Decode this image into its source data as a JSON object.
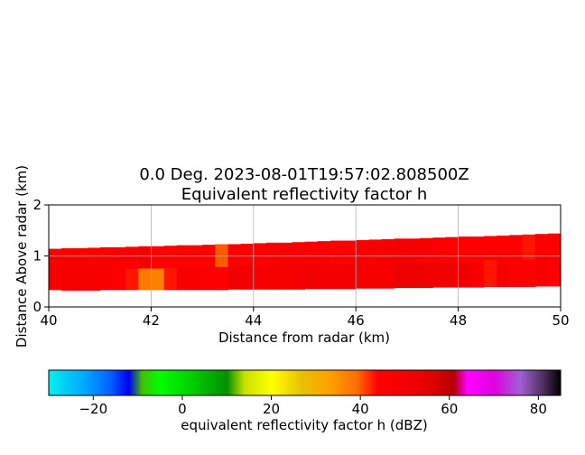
{
  "chart_data": [
    {
      "type": "heatmap",
      "title": "0.0 Deg. 2023-08-01T19:57:02.808500Z",
      "subtitle": "Equivalent reflectivity factor h",
      "xlabel": "Distance from radar (km)",
      "ylabel": "Distance Above radar  (km)",
      "xlim": [
        40,
        50
      ],
      "ylim": [
        0,
        2
      ],
      "xticks": [
        "40",
        "42",
        "44",
        "46",
        "48",
        "50"
      ],
      "yticks": [
        "0",
        "1",
        "2"
      ],
      "grid": true,
      "gate_spacing_km": 0.25,
      "start_km": 40.0,
      "bottom_edge": [
        0.33,
        0.32,
        0.32,
        0.32,
        0.33,
        0.33,
        0.33,
        0.33,
        0.33,
        0.33,
        0.33,
        0.33,
        0.33,
        0.33,
        0.34,
        0.34,
        0.34,
        0.34,
        0.34,
        0.34,
        0.35,
        0.35,
        0.35,
        0.35,
        0.36,
        0.36,
        0.36,
        0.37,
        0.37,
        0.37,
        0.38,
        0.38,
        0.38,
        0.38,
        0.39,
        0.39,
        0.39,
        0.39,
        0.4,
        0.4
      ],
      "mid_edge": [
        0.73,
        0.73,
        0.74,
        0.74,
        0.74,
        0.75,
        0.75,
        0.76,
        0.76,
        0.77,
        0.77,
        0.78,
        0.78,
        0.79,
        0.79,
        0.8,
        0.8,
        0.81,
        0.81,
        0.82,
        0.83,
        0.83,
        0.84,
        0.84,
        0.85,
        0.86,
        0.86,
        0.87,
        0.88,
        0.88,
        0.89,
        0.9,
        0.9,
        0.91,
        0.92,
        0.92,
        0.93,
        0.94,
        0.94,
        0.95
      ],
      "top_edge": [
        1.14,
        1.15,
        1.15,
        1.16,
        1.17,
        1.17,
        1.18,
        1.19,
        1.19,
        1.2,
        1.21,
        1.21,
        1.22,
        1.23,
        1.23,
        1.24,
        1.25,
        1.26,
        1.26,
        1.27,
        1.28,
        1.29,
        1.3,
        1.3,
        1.31,
        1.32,
        1.33,
        1.34,
        1.34,
        1.35,
        1.36,
        1.37,
        1.38,
        1.38,
        1.39,
        1.4,
        1.41,
        1.42,
        1.43,
        1.44
      ],
      "upper_row_dbz": [
        48,
        48,
        48,
        47,
        47,
        46,
        46,
        50,
        45,
        45,
        45,
        44,
        44,
        40,
        46,
        45,
        45,
        46,
        47,
        47,
        48,
        48,
        45,
        45,
        47,
        47,
        49,
        50,
        47,
        47,
        46,
        45,
        45,
        45,
        44,
        44,
        44,
        43,
        46,
        45
      ],
      "lower_row_dbz": [
        47,
        48,
        49,
        48,
        48,
        46,
        43,
        38,
        37,
        43,
        47,
        47,
        46,
        45,
        52,
        51,
        50,
        49,
        49,
        50,
        52,
        50,
        50,
        51,
        48,
        47,
        49,
        53,
        53,
        52,
        51,
        52,
        52,
        47,
        43,
        47,
        45,
        44,
        47,
        45
      ]
    },
    {
      "type": "colorbar",
      "label": "equivalent reflectivity factor h (dBZ)",
      "range": [
        -30,
        85
      ],
      "ticks": [
        "−20",
        "0",
        "20",
        "40",
        "60",
        "80"
      ],
      "tick_values": [
        -20,
        0,
        20,
        40,
        60,
        80
      ],
      "stops": [
        {
          "v": -30,
          "c": "#00f0f0"
        },
        {
          "v": -22,
          "c": "#00a8ff"
        },
        {
          "v": -16,
          "c": "#0060ff"
        },
        {
          "v": -12,
          "c": "#0000f0"
        },
        {
          "v": -9,
          "c": "#40c000"
        },
        {
          "v": -5,
          "c": "#00ff00"
        },
        {
          "v": 3,
          "c": "#00c800"
        },
        {
          "v": 10,
          "c": "#009000"
        },
        {
          "v": 14,
          "c": "#c8e000"
        },
        {
          "v": 20,
          "c": "#ffff00"
        },
        {
          "v": 27,
          "c": "#e8c000"
        },
        {
          "v": 33,
          "c": "#ffa000"
        },
        {
          "v": 39,
          "c": "#ff7000"
        },
        {
          "v": 44,
          "c": "#ff0000"
        },
        {
          "v": 52,
          "c": "#f00000"
        },
        {
          "v": 56,
          "c": "#e00000"
        },
        {
          "v": 61,
          "c": "#b40000"
        },
        {
          "v": 64,
          "c": "#ff00ff"
        },
        {
          "v": 70,
          "c": "#e000e0"
        },
        {
          "v": 76,
          "c": "#a060d0"
        },
        {
          "v": 81,
          "c": "#503060"
        },
        {
          "v": 85,
          "c": "#000000"
        }
      ]
    }
  ]
}
